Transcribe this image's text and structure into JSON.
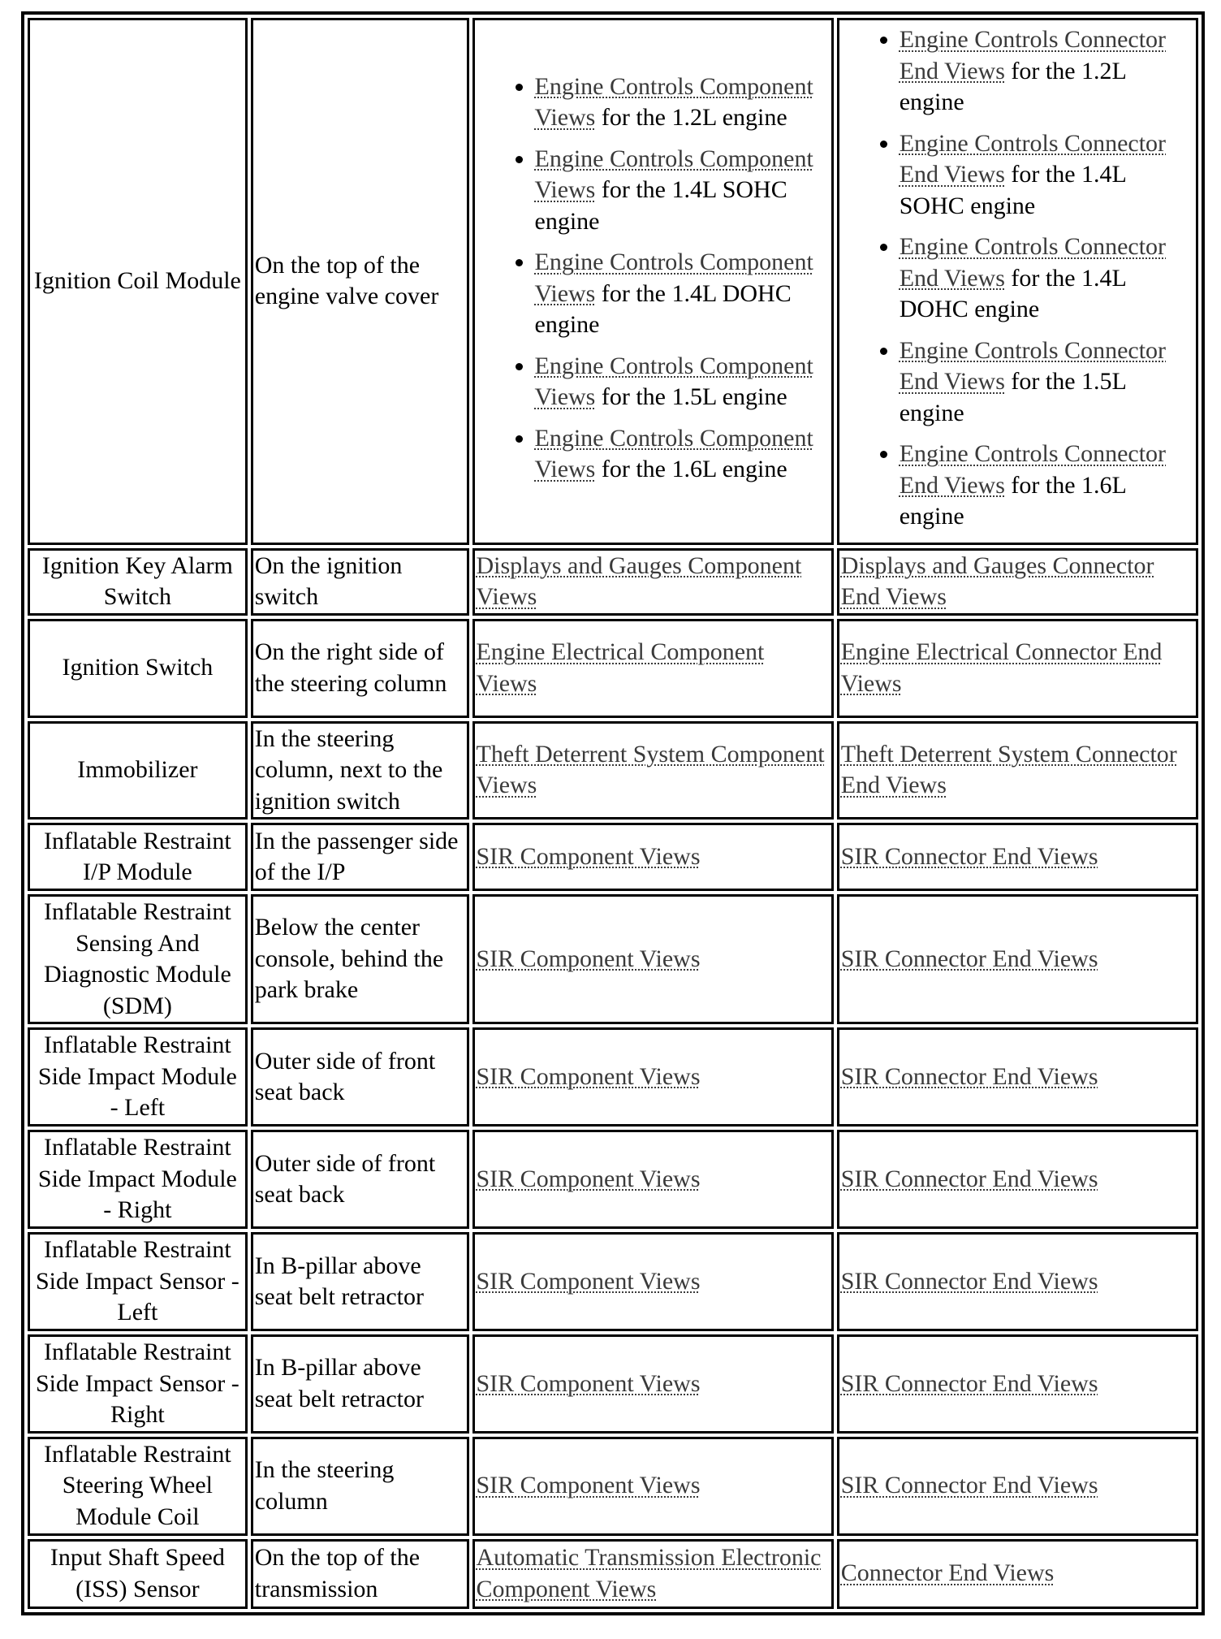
{
  "rows": [
    {
      "component": "Ignition Coil Module",
      "location": "On the top of the engine valve cover",
      "component_views": [
        {
          "link": "Engine Controls Component Views",
          "suffix": " for the 1.2L engine"
        },
        {
          "link": "Engine Controls Component Views",
          "suffix": " for the 1.4L SOHC engine"
        },
        {
          "link": "Engine Controls Component Views",
          "suffix": " for the 1.4L DOHC engine"
        },
        {
          "link": "Engine Controls Component Views",
          "suffix": " for the 1.5L engine"
        },
        {
          "link": "Engine Controls Component Views",
          "suffix": " for the 1.6L engine"
        }
      ],
      "connector_views": [
        {
          "link": "Engine Controls Connector End Views",
          "suffix": " for the 1.2L engine"
        },
        {
          "link": "Engine Controls Connector End Views",
          "suffix": " for the 1.4L SOHC engine"
        },
        {
          "link": "Engine Controls Connector End Views",
          "suffix": " for the 1.4L DOHC engine"
        },
        {
          "link": "Engine Controls Connector End Views",
          "suffix": " for the 1.5L engine"
        },
        {
          "link": "Engine Controls Connector End Views",
          "suffix": " for the 1.6L engine"
        }
      ]
    },
    {
      "component": "Ignition Key Alarm Switch",
      "location": "On the ignition switch",
      "component_view": "Displays and Gauges Component Views",
      "connector_view": "Displays and Gauges Connector End Views"
    },
    {
      "component": "Ignition Switch",
      "location": "On the right side of the steering column",
      "component_view": "Engine Electrical Component Views",
      "connector_view": "Engine Electrical Connector End Views"
    },
    {
      "component": "Immobilizer",
      "location": "In the steering column, next to the ignition switch",
      "component_view": "Theft Deterrent System Component Views",
      "connector_view": "Theft Deterrent System Connector End Views"
    },
    {
      "component": "Inflatable Restraint I/P Module",
      "location": "In the passenger side of the I/P",
      "component_view": "SIR Component Views",
      "connector_view": "SIR Connector End Views"
    },
    {
      "component": "Inflatable Restraint Sensing And Diagnostic Module (SDM)",
      "location": "Below the center console, behind the park brake",
      "component_view": "SIR Component Views",
      "connector_view": "SIR Connector End Views"
    },
    {
      "component": "Inflatable Restraint Side Impact Module - Left",
      "location": "Outer side of front seat back",
      "component_view": "SIR Component Views",
      "connector_view": "SIR Connector End Views"
    },
    {
      "component": "Inflatable Restraint Side Impact Module - Right",
      "location": "Outer side of front seat back",
      "component_view": "SIR Component Views",
      "connector_view": "SIR Connector End Views"
    },
    {
      "component": "Inflatable Restraint Side Impact Sensor - Left",
      "location": "In B-pillar above seat belt retractor",
      "component_view": "SIR Component Views",
      "connector_view": "SIR Connector End Views"
    },
    {
      "component": "Inflatable Restraint Side Impact Sensor - Right",
      "location": "In B-pillar above seat belt retractor",
      "component_view": "SIR Component Views",
      "connector_view": "SIR Connector End Views"
    },
    {
      "component": "Inflatable Restraint Steering Wheel Module Coil",
      "location": "In the steering column",
      "component_view": "SIR Component Views",
      "connector_view": "SIR Connector End Views"
    },
    {
      "component": "Input Shaft Speed (ISS) Sensor",
      "location": "On the top of the transmission",
      "component_view": "Automatic Transmission Electronic Component Views",
      "connector_view": "Connector End Views"
    }
  ]
}
